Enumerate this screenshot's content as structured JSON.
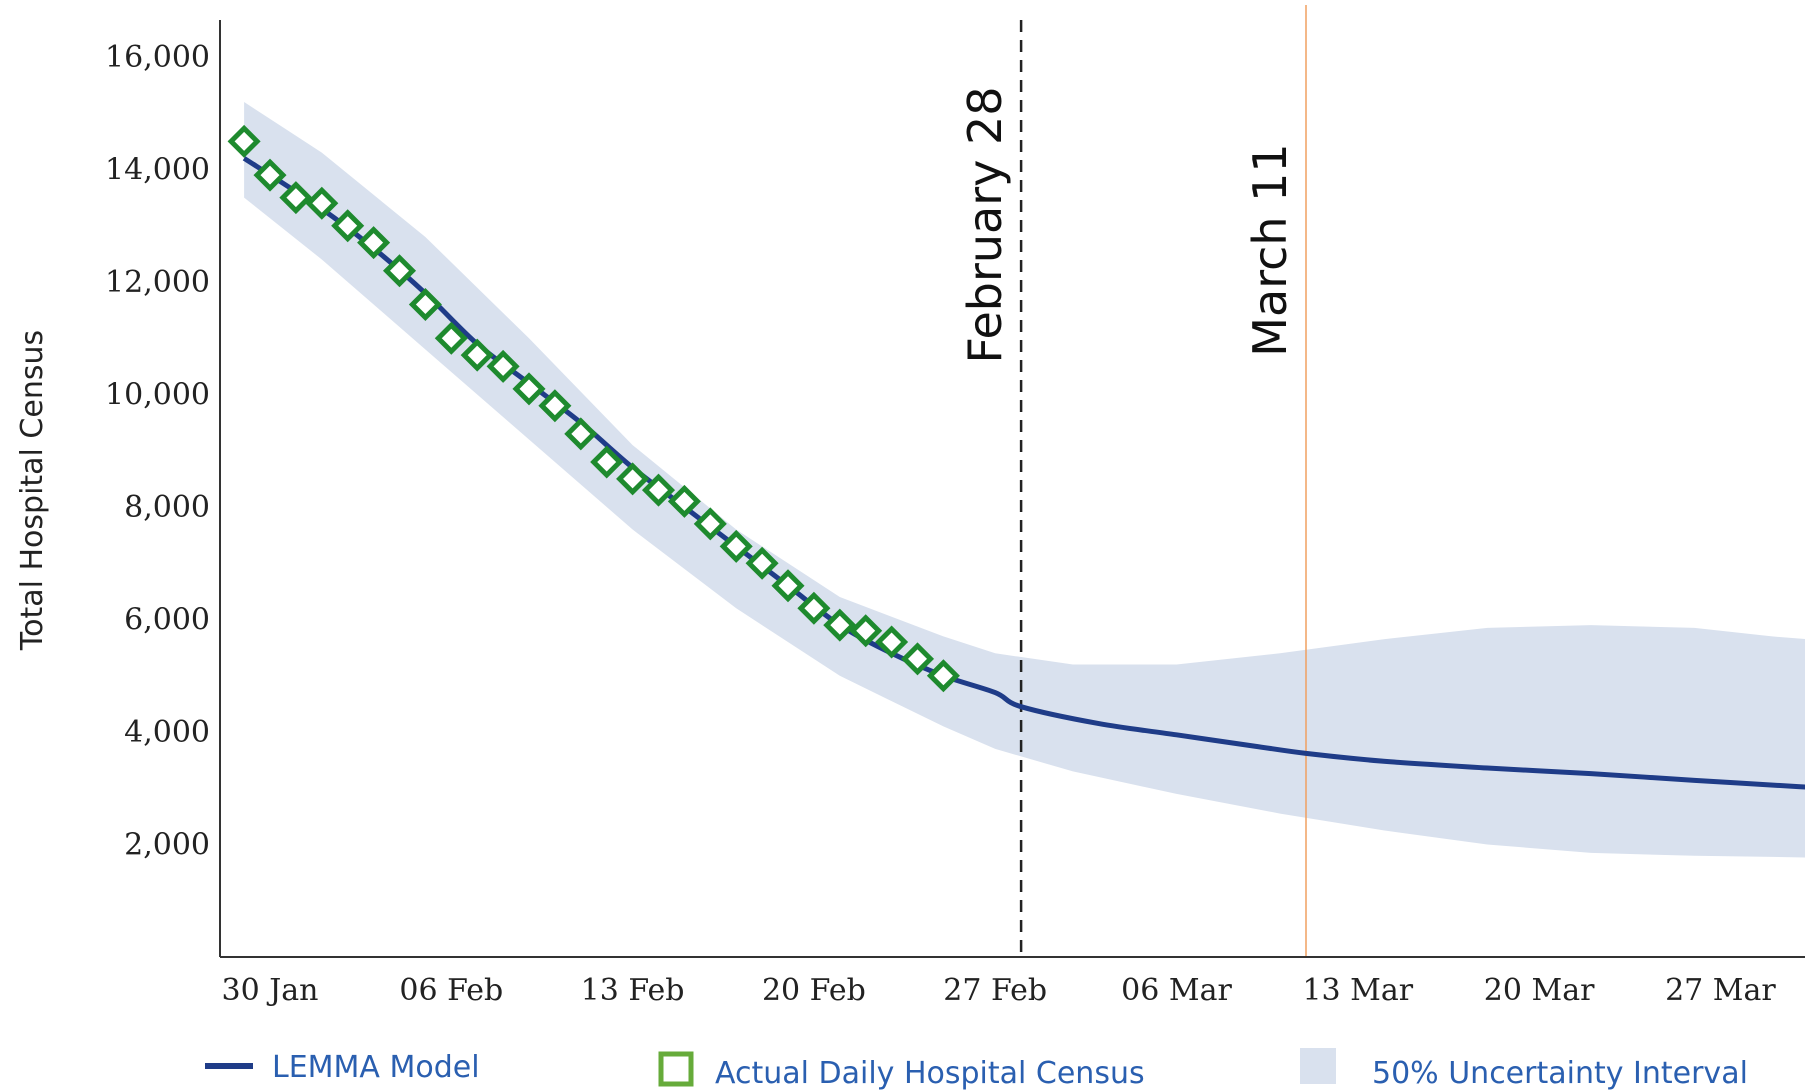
{
  "chart_data": {
    "type": "line",
    "ylabel": "Total Hospital Census",
    "xlabel": "",
    "ylim": [
      0,
      16500
    ],
    "xlim": [
      "2021-01-29",
      "2021-04-02"
    ],
    "y_ticks": [
      {
        "value": 2000,
        "label": "2,000"
      },
      {
        "value": 4000,
        "label": "4,000"
      },
      {
        "value": 6000,
        "label": "6,000"
      },
      {
        "value": 8000,
        "label": "8,000"
      },
      {
        "value": 10000,
        "label": "10,000"
      },
      {
        "value": 12000,
        "label": "12,000"
      },
      {
        "value": 14000,
        "label": "14,000"
      },
      {
        "value": 16000,
        "label": "16,000"
      }
    ],
    "x_ticks": [
      {
        "date": "2021-01-30",
        "label": "30 Jan"
      },
      {
        "date": "2021-02-06",
        "label": "06 Feb"
      },
      {
        "date": "2021-02-13",
        "label": "13 Feb"
      },
      {
        "date": "2021-02-20",
        "label": "20 Feb"
      },
      {
        "date": "2021-02-27",
        "label": "27 Feb"
      },
      {
        "date": "2021-03-06",
        "label": "06 Mar"
      },
      {
        "date": "2021-03-13",
        "label": "13 Mar"
      },
      {
        "date": "2021-03-20",
        "label": "20 Mar"
      },
      {
        "date": "2021-03-27",
        "label": "27 Mar"
      }
    ],
    "grid": false,
    "legend_position": "bottom",
    "colors": {
      "model": "#1f3c88",
      "actual": "#1e8a2e",
      "band": "#d9e1ee",
      "feb28_line": "#222222",
      "mar11_line": "#f0a060"
    },
    "vertical_lines": [
      {
        "date": "2021-02-28",
        "label": "February 28",
        "style": "dashed"
      },
      {
        "date": "2021-03-11",
        "label": "March 11",
        "style": "solid"
      }
    ],
    "series": [
      {
        "name": "LEMMA Model",
        "type": "line",
        "x": [
          "2021-01-29",
          "2021-02-01",
          "2021-02-03",
          "2021-02-05",
          "2021-02-07",
          "2021-02-09",
          "2021-02-11",
          "2021-02-13",
          "2021-02-15",
          "2021-02-17",
          "2021-02-19",
          "2021-02-21",
          "2021-02-23",
          "2021-02-25",
          "2021-02-27",
          "2021-02-28",
          "2021-03-03",
          "2021-03-06",
          "2021-03-09",
          "2021-03-11",
          "2021-03-14",
          "2021-03-18",
          "2021-03-22",
          "2021-03-26",
          "2021-03-30",
          "2021-04-02"
        ],
        "y": [
          14200,
          13300,
          12600,
          11800,
          10900,
          10200,
          9500,
          8700,
          8000,
          7300,
          6600,
          5900,
          5400,
          5000,
          4700,
          4450,
          4150,
          3950,
          3750,
          3620,
          3480,
          3360,
          3260,
          3140,
          3030,
          2950
        ]
      },
      {
        "name": "Actual Daily Hospital Census",
        "type": "scatter",
        "x": [
          "2021-01-29",
          "2021-01-30",
          "2021-01-31",
          "2021-02-01",
          "2021-02-02",
          "2021-02-03",
          "2021-02-04",
          "2021-02-05",
          "2021-02-06",
          "2021-02-07",
          "2021-02-08",
          "2021-02-09",
          "2021-02-10",
          "2021-02-11",
          "2021-02-12",
          "2021-02-13",
          "2021-02-14",
          "2021-02-15",
          "2021-02-16",
          "2021-02-17",
          "2021-02-18",
          "2021-02-19",
          "2021-02-20",
          "2021-02-21",
          "2021-02-22",
          "2021-02-23",
          "2021-02-24",
          "2021-02-25"
        ],
        "y": [
          14500,
          13900,
          13500,
          13400,
          13000,
          12700,
          12200,
          11600,
          11000,
          10700,
          10500,
          10100,
          9800,
          9300,
          8800,
          8500,
          8300,
          8100,
          7700,
          7300,
          7000,
          6600,
          6200,
          5900,
          5800,
          5600,
          5300,
          5000
        ]
      },
      {
        "name": "50% Uncertainty Interval",
        "type": "band",
        "x": [
          "2021-01-29",
          "2021-02-01",
          "2021-02-05",
          "2021-02-09",
          "2021-02-13",
          "2021-02-17",
          "2021-02-21",
          "2021-02-25",
          "2021-02-27",
          "2021-03-02",
          "2021-03-06",
          "2021-03-10",
          "2021-03-14",
          "2021-03-18",
          "2021-03-22",
          "2021-03-26",
          "2021-03-29",
          "2021-04-02"
        ],
        "lower": [
          13500,
          12400,
          10800,
          9200,
          7600,
          6200,
          5000,
          4100,
          3700,
          3300,
          2900,
          2550,
          2250,
          2000,
          1850,
          1800,
          1780,
          1750
        ],
        "upper": [
          15200,
          14300,
          12800,
          11000,
          9100,
          7600,
          6400,
          5700,
          5400,
          5200,
          5200,
          5400,
          5650,
          5850,
          5900,
          5850,
          5700,
          5550
        ]
      }
    ],
    "legend": [
      {
        "key": "model",
        "label": "LEMMA Model",
        "color": "#2a5fb0"
      },
      {
        "key": "actual",
        "label": "Actual Daily Hospital Census",
        "color": "#2a5fb0"
      },
      {
        "key": "band",
        "label": "50% Uncertainty Interval",
        "color": "#2a5fb0"
      }
    ]
  }
}
